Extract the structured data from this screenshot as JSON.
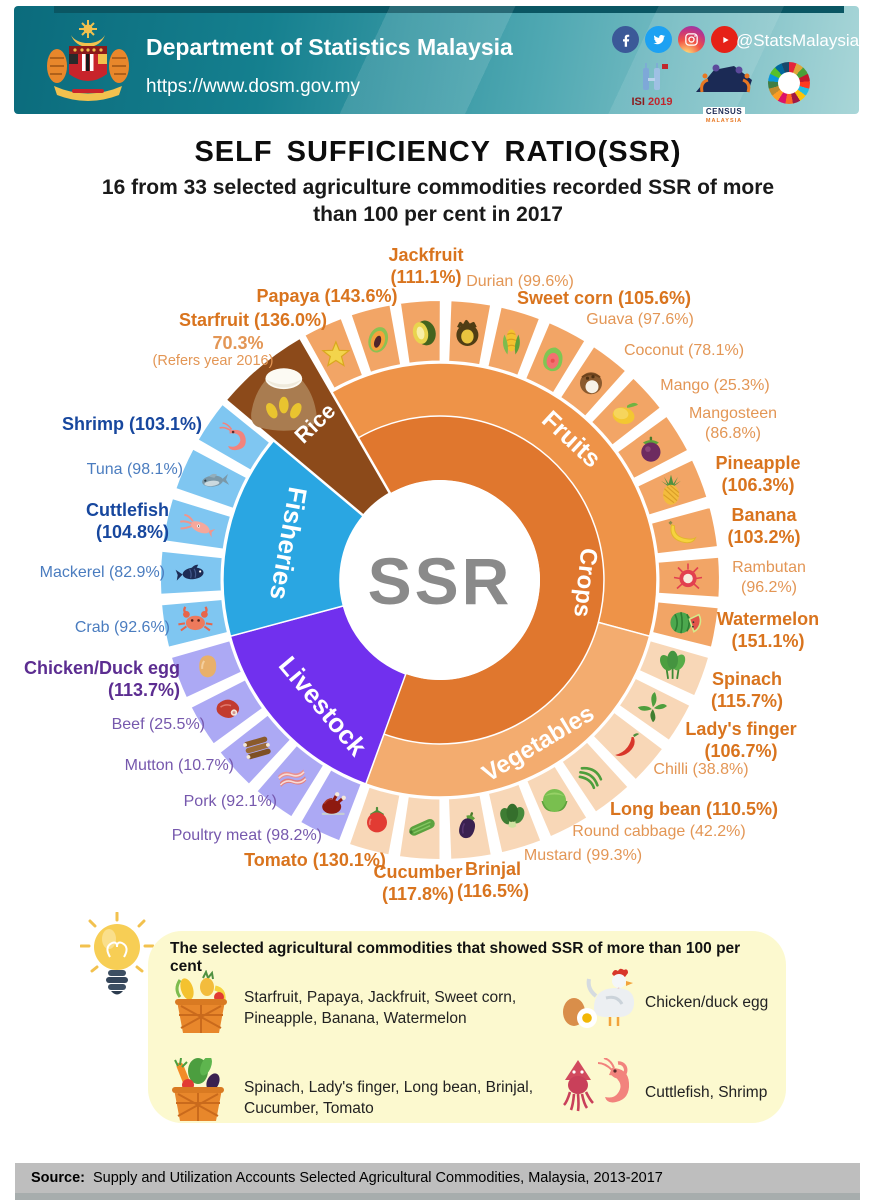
{
  "header": {
    "title": "Department of Statistics Malaysia",
    "url": "https://www.dosm.gov.my",
    "social_handle": "@StatsMalaysia",
    "social_icons": [
      "facebook-icon",
      "twitter-icon",
      "instagram-icon",
      "youtube-icon"
    ],
    "logos": {
      "isi": "ISI",
      "isi_year": "2019",
      "census": "CENSUS",
      "census_sub": "MALAYSIA"
    }
  },
  "titles": {
    "title": "SELF SUFFICIENCY RATIO(SSR)",
    "subtitle": "16 from 33 selected agriculture commodities recorded SSR of more than 100 per cent in 2017"
  },
  "chart_data": {
    "type": "donut",
    "center_label": "SSR",
    "crops": {
      "label": "Crops",
      "color": "#E0772E"
    },
    "sectors": [
      {
        "id": "fruits",
        "name": "Fruits",
        "color": "#EE9348",
        "cell_color": "#F2A566",
        "label_color": "#E39655",
        "label_color_hi": "#D9741E",
        "items": [
          {
            "name": "Starfruit",
            "ssr": 136.0,
            "label": "Starfruit (136.0%)",
            "above_100": true,
            "icon": "starfruit-icon"
          },
          {
            "name": "Papaya",
            "ssr": 143.6,
            "label": "Papaya (143.6%)",
            "above_100": true,
            "icon": "papaya-icon"
          },
          {
            "name": "Jackfruit",
            "ssr": 111.1,
            "label": "Jackfruit (111.1%)",
            "above_100": true,
            "icon": "jackfruit-icon"
          },
          {
            "name": "Durian",
            "ssr": 99.6,
            "label": "Durian (99.6%)",
            "above_100": false,
            "icon": "durian-icon"
          },
          {
            "name": "Sweet corn",
            "ssr": 105.6,
            "label": "Sweet corn (105.6%)",
            "above_100": true,
            "icon": "sweetcorn-icon"
          },
          {
            "name": "Guava",
            "ssr": 97.6,
            "label": "Guava (97.6%)",
            "above_100": false,
            "icon": "guava-icon"
          },
          {
            "name": "Coconut",
            "ssr": 78.1,
            "label": "Coconut (78.1%)",
            "above_100": false,
            "icon": "coconut-icon"
          },
          {
            "name": "Mango",
            "ssr": 25.3,
            "label": "Mango (25.3%)",
            "above_100": false,
            "icon": "mango-icon"
          },
          {
            "name": "Mangosteen",
            "ssr": 86.8,
            "label": "Mangosteen (86.8%)",
            "above_100": false,
            "icon": "mangosteen-icon"
          },
          {
            "name": "Pineapple",
            "ssr": 106.3,
            "label": "Pineapple (106.3%)",
            "above_100": true,
            "icon": "pineapple-icon"
          },
          {
            "name": "Banana",
            "ssr": 103.2,
            "label": "Banana (103.2%)",
            "above_100": true,
            "icon": "banana-icon"
          },
          {
            "name": "Rambutan",
            "ssr": 96.2,
            "label": "Rambutan (96.2%)",
            "above_100": false,
            "icon": "rambutan-icon"
          },
          {
            "name": "Watermelon",
            "ssr": 151.1,
            "label": "Watermelon (151.1%)",
            "above_100": true,
            "icon": "watermelon-icon"
          }
        ]
      },
      {
        "id": "vegetables",
        "name": "Vegetables",
        "color": "#F3AC6F",
        "cell_color": "#F8D7B7",
        "label_color": "#E39655",
        "label_color_hi": "#D9741E",
        "items": [
          {
            "name": "Spinach",
            "ssr": 115.7,
            "label": "Spinach (115.7%)",
            "above_100": true,
            "icon": "spinach-icon"
          },
          {
            "name": "Lady's finger",
            "ssr": 106.7,
            "label": "Lady's finger (106.7%)",
            "above_100": true,
            "icon": "ladysfinger-icon"
          },
          {
            "name": "Chilli",
            "ssr": 38.8,
            "label": "Chilli (38.8%)",
            "above_100": false,
            "icon": "chilli-icon"
          },
          {
            "name": "Long bean",
            "ssr": 110.5,
            "label": "Long bean (110.5%)",
            "above_100": true,
            "icon": "longbean-icon"
          },
          {
            "name": "Round cabbage",
            "ssr": 42.2,
            "label": "Round cabbage (42.2%)",
            "above_100": false,
            "icon": "roundcabbage-icon"
          },
          {
            "name": "Mustard",
            "ssr": 99.3,
            "label": "Mustard (99.3%)",
            "above_100": false,
            "icon": "mustard-icon"
          },
          {
            "name": "Brinjal",
            "ssr": 116.5,
            "label": "Brinjal (116.5%)",
            "above_100": true,
            "icon": "brinjal-icon"
          },
          {
            "name": "Cucumber",
            "ssr": 117.8,
            "label": "Cucumber (117.8%)",
            "above_100": true,
            "icon": "cucumber-icon"
          },
          {
            "name": "Tomato",
            "ssr": 130.1,
            "label": "Tomato (130.1%)",
            "above_100": true,
            "icon": "tomato-icon"
          }
        ]
      },
      {
        "id": "livestock",
        "name": "Livestock",
        "color": "#7130EE",
        "cell_color": "#ACA9F4",
        "label_color": "#7658AD",
        "label_color_hi": "#5C2D91",
        "items": [
          {
            "name": "Poultry meat",
            "ssr": 98.2,
            "label": "Poultry meat (98.2%)",
            "above_100": false,
            "icon": "poultry-icon"
          },
          {
            "name": "Pork",
            "ssr": 92.1,
            "label": "Pork (92.1%)",
            "above_100": false,
            "icon": "pork-icon"
          },
          {
            "name": "Mutton",
            "ssr": 10.7,
            "label": "Mutton (10.7%)",
            "above_100": false,
            "icon": "mutton-icon"
          },
          {
            "name": "Beef",
            "ssr": 25.5,
            "label": "Beef (25.5%)",
            "above_100": false,
            "icon": "beef-icon"
          },
          {
            "name": "Chicken/Duck egg",
            "ssr": 113.7,
            "label": "Chicken/Duck egg (113.7%)",
            "above_100": true,
            "icon": "egg-icon"
          }
        ]
      },
      {
        "id": "fisheries",
        "name": "Fisheries",
        "color": "#2AA6E2",
        "cell_color": "#7FC6F1",
        "label_color": "#4A7CBF",
        "label_color_hi": "#17479E",
        "items": [
          {
            "name": "Crab",
            "ssr": 92.6,
            "label": "Crab (92.6%)",
            "above_100": false,
            "icon": "crab-icon"
          },
          {
            "name": "Mackerel",
            "ssr": 82.9,
            "label": "Mackerel (82.9%)",
            "above_100": false,
            "icon": "mackerel-icon"
          },
          {
            "name": "Cuttlefish",
            "ssr": 104.8,
            "label": "Cuttlefish (104.8%)",
            "above_100": true,
            "icon": "cuttlefish-icon"
          },
          {
            "name": "Tuna",
            "ssr": 98.1,
            "label": "Tuna (98.1%)",
            "above_100": false,
            "icon": "tuna-icon"
          },
          {
            "name": "Shrimp",
            "ssr": 103.1,
            "label": "Shrimp (103.1%)",
            "above_100": true,
            "icon": "shrimp-icon"
          }
        ]
      },
      {
        "id": "rice",
        "name": "Rice",
        "color": "#8C4A1A",
        "cell_color": "#8C4A1A",
        "label_color": "#E39655",
        "label_color_hi": "#A05A1C",
        "items": [
          {
            "name": "Rice",
            "ssr": 70.3,
            "label": "70.3%",
            "note": "(Refers year 2016)",
            "above_100": false,
            "icon": "rice-sack-icon"
          }
        ]
      }
    ]
  },
  "summary": {
    "heading": "The selected agricultural commodities that showed SSR of more than 100 per cent",
    "items": [
      {
        "icon": "fruit-basket-icon",
        "text": "Starfruit, Papaya, Jackfruit, Sweet corn, Pineapple, Banana, Watermelon"
      },
      {
        "icon": "chicken-egg-icon",
        "text": "Chicken/duck egg"
      },
      {
        "icon": "vegetable-basket-icon",
        "text": "Spinach, Lady's finger, Long bean, Brinjal, Cucumber, Tomato"
      },
      {
        "icon": "squid-shrimp-icon",
        "text": "Cuttlefish, Shrimp"
      }
    ]
  },
  "footer": {
    "source_label": "Source:",
    "source_text": "Supply and Utilization Accounts Selected Agricultural Commodities, Malaysia, 2013-2017"
  }
}
